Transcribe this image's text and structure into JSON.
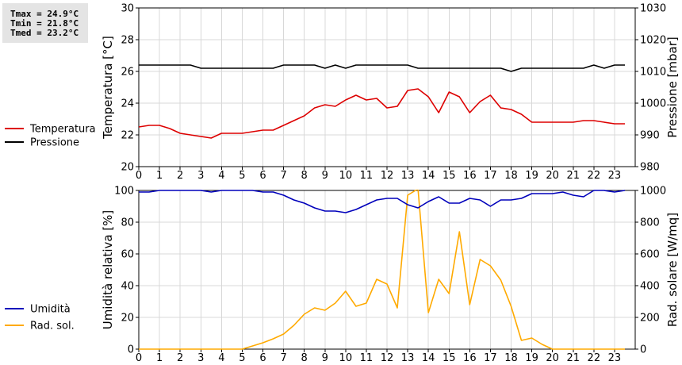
{
  "stats": {
    "tmax": "Tmax = 24.9°C",
    "tmin": "Tmin = 21.8°C",
    "tmed": "Tmed = 23.2°C"
  },
  "chart_data": [
    {
      "type": "line",
      "x_ticks": [
        "0",
        "1",
        "2",
        "3",
        "4",
        "5",
        "6",
        "7",
        "8",
        "9",
        "10",
        "11",
        "12",
        "13",
        "14",
        "15",
        "16",
        "17",
        "18",
        "19",
        "20",
        "21",
        "22",
        "23"
      ],
      "xlim": [
        0,
        24
      ],
      "ylabel": "Temperatura [°C]",
      "ylim": [
        20,
        30
      ],
      "y_ticks": [
        "20",
        "22",
        "24",
        "26",
        "28",
        "30"
      ],
      "y2label": "Pressione [mbar]",
      "y2lim": [
        980,
        1030
      ],
      "y2_ticks": [
        "980",
        "990",
        "1000",
        "1010",
        "1020",
        "1030"
      ],
      "grid": true,
      "legend_position": "left",
      "series": [
        {
          "name": "Temperatura",
          "axis": "left",
          "color": "#dd0000",
          "x": [
            0,
            0.5,
            1,
            1.5,
            2,
            2.5,
            3,
            3.5,
            4,
            4.5,
            5,
            5.5,
            6,
            6.5,
            7,
            7.5,
            8,
            8.5,
            9,
            9.5,
            10,
            10.5,
            11,
            11.5,
            12,
            12.5,
            13,
            13.5,
            14,
            14.5,
            15,
            15.5,
            16,
            16.5,
            17,
            17.5,
            18,
            18.5,
            19,
            19.5,
            20,
            20.5,
            21,
            21.5,
            22,
            22.5,
            23,
            23.5
          ],
          "values": [
            22.5,
            22.6,
            22.6,
            22.4,
            22.1,
            22.0,
            21.9,
            21.8,
            22.1,
            22.1,
            22.1,
            22.2,
            22.3,
            22.3,
            22.6,
            22.9,
            23.2,
            23.7,
            23.9,
            23.8,
            24.2,
            24.5,
            24.2,
            24.3,
            23.7,
            23.8,
            24.8,
            24.9,
            24.4,
            23.4,
            24.7,
            24.4,
            23.4,
            24.1,
            24.5,
            23.7,
            23.6,
            23.3,
            22.8,
            22.8,
            22.8,
            22.8,
            22.8,
            22.9,
            22.9,
            22.8,
            22.7,
            22.7
          ]
        },
        {
          "name": "Pressione",
          "axis": "right",
          "color": "#000000",
          "x": [
            0,
            0.5,
            1,
            1.5,
            2,
            2.5,
            3,
            3.5,
            4,
            4.5,
            5,
            5.5,
            6,
            6.5,
            7,
            7.5,
            8,
            8.5,
            9,
            9.5,
            10,
            10.5,
            11,
            11.5,
            12,
            12.5,
            13,
            13.5,
            14,
            14.5,
            15,
            15.5,
            16,
            16.5,
            17,
            17.5,
            18,
            18.5,
            19,
            19.5,
            20,
            20.5,
            21,
            21.5,
            22,
            22.5,
            23,
            23.5
          ],
          "values": [
            1012,
            1012,
            1012,
            1012,
            1012,
            1012,
            1011,
            1011,
            1011,
            1011,
            1011,
            1011,
            1011,
            1011,
            1012,
            1012,
            1012,
            1012,
            1011,
            1012,
            1011,
            1012,
            1012,
            1012,
            1012,
            1012,
            1012,
            1011,
            1011,
            1011,
            1011,
            1011,
            1011,
            1011,
            1011,
            1011,
            1010,
            1011,
            1011,
            1011,
            1011,
            1011,
            1011,
            1011,
            1012,
            1011,
            1012,
            1012
          ]
        }
      ]
    },
    {
      "type": "line",
      "x_ticks": [
        "0",
        "1",
        "2",
        "3",
        "4",
        "5",
        "6",
        "7",
        "8",
        "9",
        "10",
        "11",
        "12",
        "13",
        "14",
        "15",
        "16",
        "17",
        "18",
        "19",
        "20",
        "21",
        "22",
        "23"
      ],
      "xlim": [
        0,
        24
      ],
      "ylabel": "Umidità relativa [%]",
      "ylim": [
        0,
        100
      ],
      "y_ticks": [
        "0",
        "20",
        "40",
        "60",
        "80",
        "100"
      ],
      "y2label": "Rad. solare [W/mq]",
      "y2lim": [
        0,
        1000
      ],
      "y2_ticks": [
        "0",
        "200",
        "400",
        "600",
        "800",
        "1000"
      ],
      "grid": true,
      "legend_position": "left",
      "series": [
        {
          "name": "Umidità",
          "axis": "left",
          "color": "#0000bb",
          "x": [
            0,
            0.5,
            1,
            1.5,
            2,
            2.5,
            3,
            3.5,
            4,
            4.5,
            5,
            5.5,
            6,
            6.5,
            7,
            7.5,
            8,
            8.5,
            9,
            9.5,
            10,
            10.5,
            11,
            11.5,
            12,
            12.5,
            13,
            13.5,
            14,
            14.5,
            15,
            15.5,
            16,
            16.5,
            17,
            17.5,
            18,
            18.5,
            19,
            19.5,
            20,
            20.5,
            21,
            21.5,
            22,
            22.5,
            23,
            23.5
          ],
          "values": [
            99,
            99,
            100,
            100,
            100,
            100,
            100,
            99,
            100,
            100,
            100,
            100,
            99,
            99,
            97,
            94,
            92,
            89,
            87,
            87,
            86,
            88,
            91,
            94,
            95,
            95,
            91,
            89,
            93,
            96,
            92,
            92,
            95,
            94,
            90,
            94,
            94,
            95,
            98,
            98,
            98,
            99,
            97,
            96,
            100,
            100,
            99,
            100
          ]
        },
        {
          "name": "Rad. sol.",
          "axis": "right",
          "color": "#ffaa00",
          "x": [
            0,
            0.5,
            1,
            1.5,
            2,
            2.5,
            3,
            3.5,
            4,
            4.5,
            5,
            5.5,
            6,
            6.5,
            7,
            7.5,
            8,
            8.5,
            9,
            9.5,
            10,
            10.5,
            11,
            11.5,
            12,
            12.5,
            13,
            13.5,
            14,
            14.5,
            15,
            15.5,
            16,
            16.5,
            17,
            17.5,
            18,
            18.5,
            19,
            19.5,
            20,
            20.5,
            21,
            21.5,
            22,
            22.5,
            23,
            23.5
          ],
          "values": [
            0,
            0,
            0,
            0,
            0,
            0,
            0,
            0,
            0,
            0,
            0,
            20,
            40,
            65,
            95,
            150,
            220,
            260,
            245,
            290,
            365,
            270,
            290,
            440,
            410,
            260,
            970,
            1010,
            230,
            440,
            350,
            740,
            280,
            565,
            525,
            435,
            270,
            55,
            70,
            30,
            0,
            0,
            0,
            0,
            0,
            0,
            0,
            0
          ]
        }
      ]
    }
  ]
}
